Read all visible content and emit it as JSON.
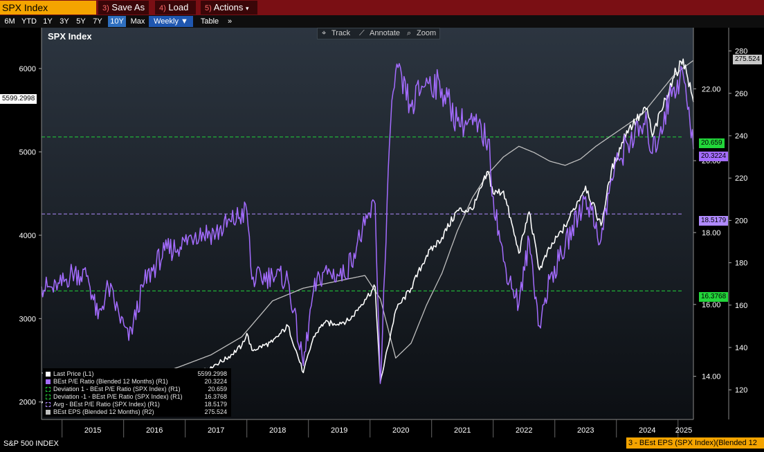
{
  "topbar": {
    "ticker": "SPX Index",
    "save_as": {
      "num": "3)",
      "label": "Save As"
    },
    "load": {
      "num": "4)",
      "label": "Load"
    },
    "actions": {
      "num": "5)",
      "label": "Actions",
      "caret": "▾"
    }
  },
  "ranges": {
    "items": [
      "6M",
      "YTD",
      "1Y",
      "3Y",
      "5Y",
      "7Y",
      "10Y",
      "Max"
    ],
    "selected": "10Y",
    "frequency": "Weekly ▼",
    "table": "Table",
    "more": "»"
  },
  "tools": {
    "track": "Track",
    "annotate": "Annotate",
    "zoom": "Zoom"
  },
  "footer": {
    "security": "S&P 500 INDEX",
    "subtitle": "3 - BEst EPS (SPX Index)(Blended 12"
  },
  "colors": {
    "price": "#ffffff",
    "pe": "#a46cff",
    "eps": "#bfbfbf",
    "dev_plus": "#22d63a",
    "dev_minus": "#22d63a",
    "avg": "#b08aff",
    "ticker_bg": "#f4a400",
    "menubar": "#7a0f14"
  },
  "chart_data": {
    "type": "line",
    "title": "SPX Index",
    "x_range": [
      "2014-09",
      "2025-04"
    ],
    "x_ticks": [
      "2015",
      "2016",
      "2017",
      "2018",
      "2019",
      "2020",
      "2021",
      "2022",
      "2023",
      "2024",
      "2025"
    ],
    "y_left": {
      "ticks": [
        "2000",
        "3000",
        "4000",
        "5000",
        "6000"
      ],
      "range": [
        1790,
        6490
      ]
    },
    "y_right_pe": {
      "ticks": [
        "14.00",
        "16.00",
        "18.00",
        "20.00",
        "22.00"
      ],
      "range": [
        12.8,
        23.7
      ]
    },
    "y_right_eps": {
      "ticks": [
        "120",
        "140",
        "160",
        "180",
        "200",
        "220",
        "240",
        "260",
        "280"
      ],
      "range": [
        106,
        291
      ]
    },
    "legend": [
      {
        "label": "Last Price (L1)",
        "value": "5599.2998",
        "swatch": "#ffffff",
        "style": "solid"
      },
      {
        "label": "BEst P/E Ratio (Blended 12 Months) (R1)",
        "value": "20.3224",
        "swatch": "#a46cff",
        "style": "solid"
      },
      {
        "label": "Deviation 1 - BEst P/E Ratio (SPX Index) (R1)",
        "value": "20.659",
        "swatch": "#22d63a",
        "style": "dash"
      },
      {
        "label": "Deviation -1 - BEst P/E Ratio (SPX Index) (R1)",
        "value": "16.3768",
        "swatch": "#22d63a",
        "style": "dash"
      },
      {
        "label": "Avg - BEst P/E Ratio (SPX Index) (R1)",
        "value": "18.5179",
        "swatch": "#b08aff",
        "style": "dash"
      },
      {
        "label": "BEst EPS (Blended 12 Months) (R2)",
        "value": "275.524",
        "swatch": "#bfbfbf",
        "style": "solid"
      }
    ],
    "reference_lines": [
      {
        "name": "Deviation 1",
        "value": 20.659,
        "axis": "pe"
      },
      {
        "name": "Avg",
        "value": 18.5179,
        "axis": "pe"
      },
      {
        "name": "Deviation -1",
        "value": 16.3768,
        "axis": "pe"
      }
    ],
    "last_labels": {
      "price": "5599.2998",
      "eps": "275.524",
      "pe": "20.3224",
      "dev_plus": "20.659",
      "avg": "18.5179",
      "dev_minus": "16.3768"
    },
    "series": [
      {
        "name": "Last Price",
        "axis": "left",
        "points": [
          [
            "2014-09",
            1985
          ],
          [
            "2014-12",
            2059
          ],
          [
            "2015-03",
            2067
          ],
          [
            "2015-06",
            2063
          ],
          [
            "2015-08",
            1920
          ],
          [
            "2015-12",
            2044
          ],
          [
            "2016-02",
            1864
          ],
          [
            "2016-06",
            2099
          ],
          [
            "2016-10",
            2126
          ],
          [
            "2016-12",
            2239
          ],
          [
            "2017-03",
            2363
          ],
          [
            "2017-06",
            2423
          ],
          [
            "2017-09",
            2519
          ],
          [
            "2017-12",
            2674
          ],
          [
            "2018-01",
            2823
          ],
          [
            "2018-02",
            2620
          ],
          [
            "2018-06",
            2718
          ],
          [
            "2018-09",
            2914
          ],
          [
            "2018-12",
            2351
          ],
          [
            "2019-02",
            2784
          ],
          [
            "2019-04",
            2946
          ],
          [
            "2019-06",
            2941
          ],
          [
            "2019-09",
            2977
          ],
          [
            "2019-12",
            3231
          ],
          [
            "2020-02",
            3380
          ],
          [
            "2020-03",
            2237
          ],
          [
            "2020-06",
            3100
          ],
          [
            "2020-09",
            3363
          ],
          [
            "2020-12",
            3756
          ],
          [
            "2021-03",
            3973
          ],
          [
            "2021-06",
            4298
          ],
          [
            "2021-09",
            4307
          ],
          [
            "2021-12",
            4766
          ],
          [
            "2022-01",
            4500
          ],
          [
            "2022-03",
            4530
          ],
          [
            "2022-06",
            3785
          ],
          [
            "2022-08",
            4280
          ],
          [
            "2022-10",
            3585
          ],
          [
            "2022-12",
            3840
          ],
          [
            "2023-03",
            4109
          ],
          [
            "2023-07",
            4589
          ],
          [
            "2023-10",
            4117
          ],
          [
            "2023-12",
            4770
          ],
          [
            "2024-03",
            5254
          ],
          [
            "2024-07",
            5522
          ],
          [
            "2024-08",
            5186
          ],
          [
            "2024-12",
            5882
          ],
          [
            "2025-02",
            6114
          ],
          [
            "2025-04",
            5599
          ]
        ]
      },
      {
        "name": "BEst P/E Ratio",
        "axis": "pe",
        "points": [
          [
            "2014-09",
            16.5
          ],
          [
            "2014-12",
            16.4
          ],
          [
            "2015-03",
            16.9
          ],
          [
            "2015-06",
            16.8
          ],
          [
            "2015-08",
            15.6
          ],
          [
            "2015-10",
            16.5
          ],
          [
            "2016-02",
            15.0
          ],
          [
            "2016-05",
            16.6
          ],
          [
            "2016-09",
            17.5
          ],
          [
            "2016-12",
            17.6
          ],
          [
            "2017-03",
            18.0
          ],
          [
            "2017-07",
            18.0
          ],
          [
            "2017-10",
            18.3
          ],
          [
            "2018-01",
            18.6
          ],
          [
            "2018-02",
            16.7
          ],
          [
            "2018-06",
            16.8
          ],
          [
            "2018-09",
            16.7
          ],
          [
            "2018-12",
            14.3
          ],
          [
            "2019-02",
            16.4
          ],
          [
            "2019-04",
            16.9
          ],
          [
            "2019-08",
            16.8
          ],
          [
            "2019-12",
            18.2
          ],
          [
            "2020-02",
            18.8
          ],
          [
            "2020-03",
            13.8
          ],
          [
            "2020-05",
            21.0
          ],
          [
            "2020-06",
            22.5
          ],
          [
            "2020-09",
            21.5
          ],
          [
            "2020-12",
            22.3
          ],
          [
            "2021-03",
            22.0
          ],
          [
            "2021-06",
            21.1
          ],
          [
            "2021-09",
            21.0
          ],
          [
            "2021-12",
            20.6
          ],
          [
            "2022-01",
            19.0
          ],
          [
            "2022-03",
            17.2
          ],
          [
            "2022-06",
            16.0
          ],
          [
            "2022-08",
            17.8
          ],
          [
            "2022-10",
            15.4
          ],
          [
            "2022-12",
            16.7
          ],
          [
            "2023-03",
            17.6
          ],
          [
            "2023-07",
            19.0
          ],
          [
            "2023-10",
            17.8
          ],
          [
            "2023-12",
            19.5
          ],
          [
            "2024-03",
            20.5
          ],
          [
            "2024-07",
            21.0
          ],
          [
            "2024-08",
            20.2
          ],
          [
            "2024-12",
            22.0
          ],
          [
            "2025-02",
            22.4
          ],
          [
            "2025-04",
            20.3224
          ]
        ]
      },
      {
        "name": "BEst EPS",
        "axis": "eps",
        "points": [
          [
            "2014-09",
            128
          ],
          [
            "2015-06",
            124.5
          ],
          [
            "2016-06",
            126
          ],
          [
            "2016-12",
            131
          ],
          [
            "2017-06",
            136.5
          ],
          [
            "2017-12",
            145
          ],
          [
            "2018-06",
            162
          ],
          [
            "2018-12",
            168
          ],
          [
            "2019-06",
            171
          ],
          [
            "2019-12",
            174
          ],
          [
            "2020-03",
            163
          ],
          [
            "2020-06",
            135
          ],
          [
            "2020-09",
            142
          ],
          [
            "2020-12",
            160
          ],
          [
            "2021-03",
            175
          ],
          [
            "2021-06",
            195
          ],
          [
            "2021-09",
            211
          ],
          [
            "2021-12",
            222
          ],
          [
            "2022-03",
            230
          ],
          [
            "2022-06",
            235
          ],
          [
            "2022-09",
            232
          ],
          [
            "2022-12",
            228
          ],
          [
            "2023-03",
            226
          ],
          [
            "2023-06",
            229
          ],
          [
            "2023-09",
            235
          ],
          [
            "2023-12",
            240
          ],
          [
            "2024-06",
            250
          ],
          [
            "2024-12",
            268
          ],
          [
            "2025-02",
            272
          ],
          [
            "2025-04",
            275.524
          ]
        ]
      }
    ]
  }
}
